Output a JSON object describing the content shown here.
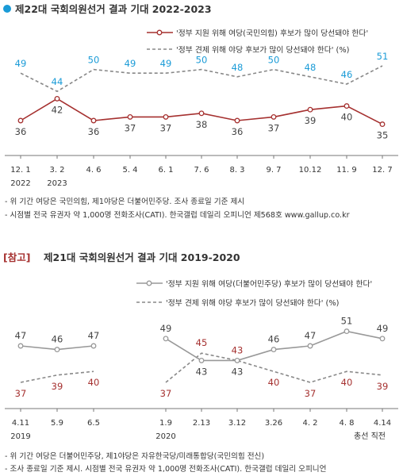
{
  "colors": {
    "accent_blue": "#1a9bd7",
    "dark_red": "#a5302f",
    "gray_line": "#999999",
    "dark_gray_text": "#444444"
  },
  "chart_data": [
    {
      "type": "line",
      "title": "제22대 국회의원선거 결과 기대 2022-2023",
      "categories": [
        "12. 1",
        "3. 2",
        "4. 6",
        "5. 4",
        "6. 1",
        "7. 6",
        "8. 3",
        "9. 7",
        "10.12",
        "11. 9",
        "12. 7"
      ],
      "year_labels": [
        {
          "index": 0,
          "label": "2022"
        },
        {
          "index": 1,
          "label": "2023"
        }
      ],
      "series": [
        {
          "name": "'정부 지원 위해 여당(국민의힘) 후보가 많이 당선돼야 한다'",
          "color": "#a5302f",
          "style": "solid",
          "values": [
            36,
            42,
            36,
            37,
            37,
            38,
            36,
            37,
            39,
            40,
            35
          ]
        },
        {
          "name": "'정부 견제 위해 야당 후보가 많이 당선돼야 한다' (%)",
          "color": "#888888",
          "style": "dashed",
          "values": [
            49,
            44,
            50,
            49,
            49,
            50,
            48,
            50,
            48,
            46,
            51
          ]
        }
      ],
      "footnotes": [
        "- 위 기간 여당은 국민의힘, 제1야당은 더불어민주당. 조사 종료일 기준 제시",
        "- 시점별 전국 유권자 약 1,000명 전화조사(CATI). 한국갤럽 데일리 오피니언 제568호 www.gallup.co.kr"
      ]
    },
    {
      "type": "line",
      "title_prefix": "[참고]",
      "title": "제21대 국회의원선거 결과 기대 2019-2020",
      "categories": [
        "4.11",
        "5.9",
        "6.5",
        "1.9",
        "2.13",
        "3.12",
        "3.26",
        "4. 2",
        "4. 8",
        "4.14"
      ],
      "year_labels": [
        {
          "index": 0,
          "label": "2019"
        },
        {
          "index": 3,
          "label": "2020"
        }
      ],
      "last_label_extra": "총선 직전",
      "series": [
        {
          "name": "'정부 지원 위해 여당(더불어민주당) 후보가 많이 당선돼야 한다'",
          "color": "#999999",
          "style": "solid",
          "values": [
            47,
            46,
            47,
            49,
            43,
            43,
            46,
            47,
            51,
            49
          ]
        },
        {
          "name": "'정부 견제 위해 야당 후보가 많이 당선돼야 한다' (%)",
          "color": "#888888",
          "style": "dashed",
          "values": [
            37,
            39,
            40,
            37,
            45,
            43,
            40,
            37,
            40,
            39
          ]
        }
      ],
      "footnotes": [
        "- 위 기간 여당은 더불어민주당, 제1야당은 자유한국당/미래통합당(국민의힘 전신)",
        "- 조사 종료일 기준 제시. 시점별 전국 유권자 약 1,000명 전화조사(CATI). 한국갤럽 데일리 오피니언"
      ]
    }
  ]
}
